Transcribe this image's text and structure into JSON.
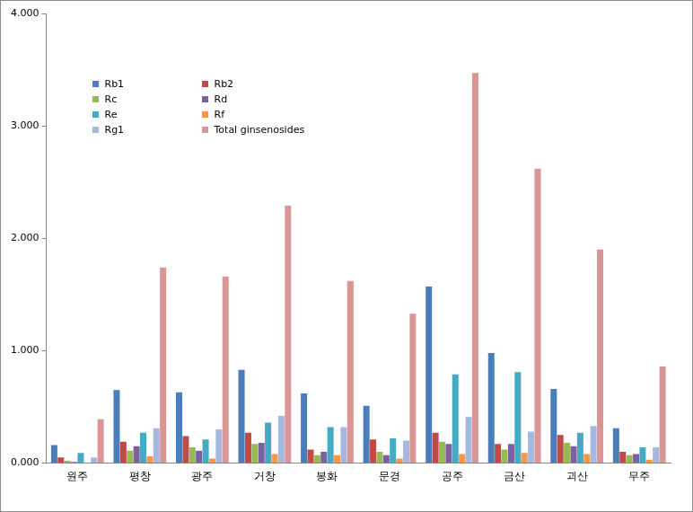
{
  "chart_data": {
    "type": "bar",
    "categories": [
      "원주",
      "평창",
      "광주",
      "거창",
      "봉화",
      "문경",
      "공주",
      "금산",
      "괴산",
      "무주"
    ],
    "series": [
      {
        "name": "Rb1",
        "color": "#4a7ebb",
        "values": [
          0.16,
          0.65,
          0.63,
          0.83,
          0.62,
          0.51,
          1.57,
          0.98,
          0.66,
          0.31
        ]
      },
      {
        "name": "Rb2",
        "color": "#be4b48",
        "values": [
          0.05,
          0.19,
          0.24,
          0.27,
          0.12,
          0.21,
          0.27,
          0.17,
          0.25,
          0.1
        ]
      },
      {
        "name": "Rc",
        "color": "#98b954",
        "values": [
          0.02,
          0.11,
          0.14,
          0.17,
          0.07,
          0.1,
          0.19,
          0.12,
          0.18,
          0.07
        ]
      },
      {
        "name": "Rd",
        "color": "#7d60a0",
        "values": [
          0.01,
          0.15,
          0.11,
          0.18,
          0.1,
          0.07,
          0.17,
          0.17,
          0.15,
          0.08
        ]
      },
      {
        "name": "Re",
        "color": "#46aac5",
        "values": [
          0.09,
          0.27,
          0.21,
          0.36,
          0.32,
          0.22,
          0.79,
          0.81,
          0.27,
          0.14
        ]
      },
      {
        "name": "Rf",
        "color": "#f79646",
        "values": [
          0.005,
          0.06,
          0.04,
          0.08,
          0.07,
          0.04,
          0.08,
          0.09,
          0.08,
          0.03
        ]
      },
      {
        "name": "Rg1",
        "color": "#a5b8e0",
        "values": [
          0.05,
          0.31,
          0.3,
          0.42,
          0.32,
          0.2,
          0.41,
          0.28,
          0.33,
          0.14
        ]
      },
      {
        "name": "Total ginsenosides",
        "color": "#d99694",
        "values": [
          0.39,
          1.74,
          1.66,
          2.29,
          1.62,
          1.33,
          3.47,
          2.62,
          1.9,
          0.86
        ]
      }
    ],
    "ylim": [
      0,
      4
    ],
    "yticks": [
      {
        "value": 0,
        "label": "0.000"
      },
      {
        "value": 1,
        "label": "1.000"
      },
      {
        "value": 2,
        "label": "2.000"
      },
      {
        "value": 3,
        "label": "3.000"
      },
      {
        "value": 4,
        "label": "4.000"
      }
    ],
    "grid": false,
    "legend": "top-left"
  }
}
